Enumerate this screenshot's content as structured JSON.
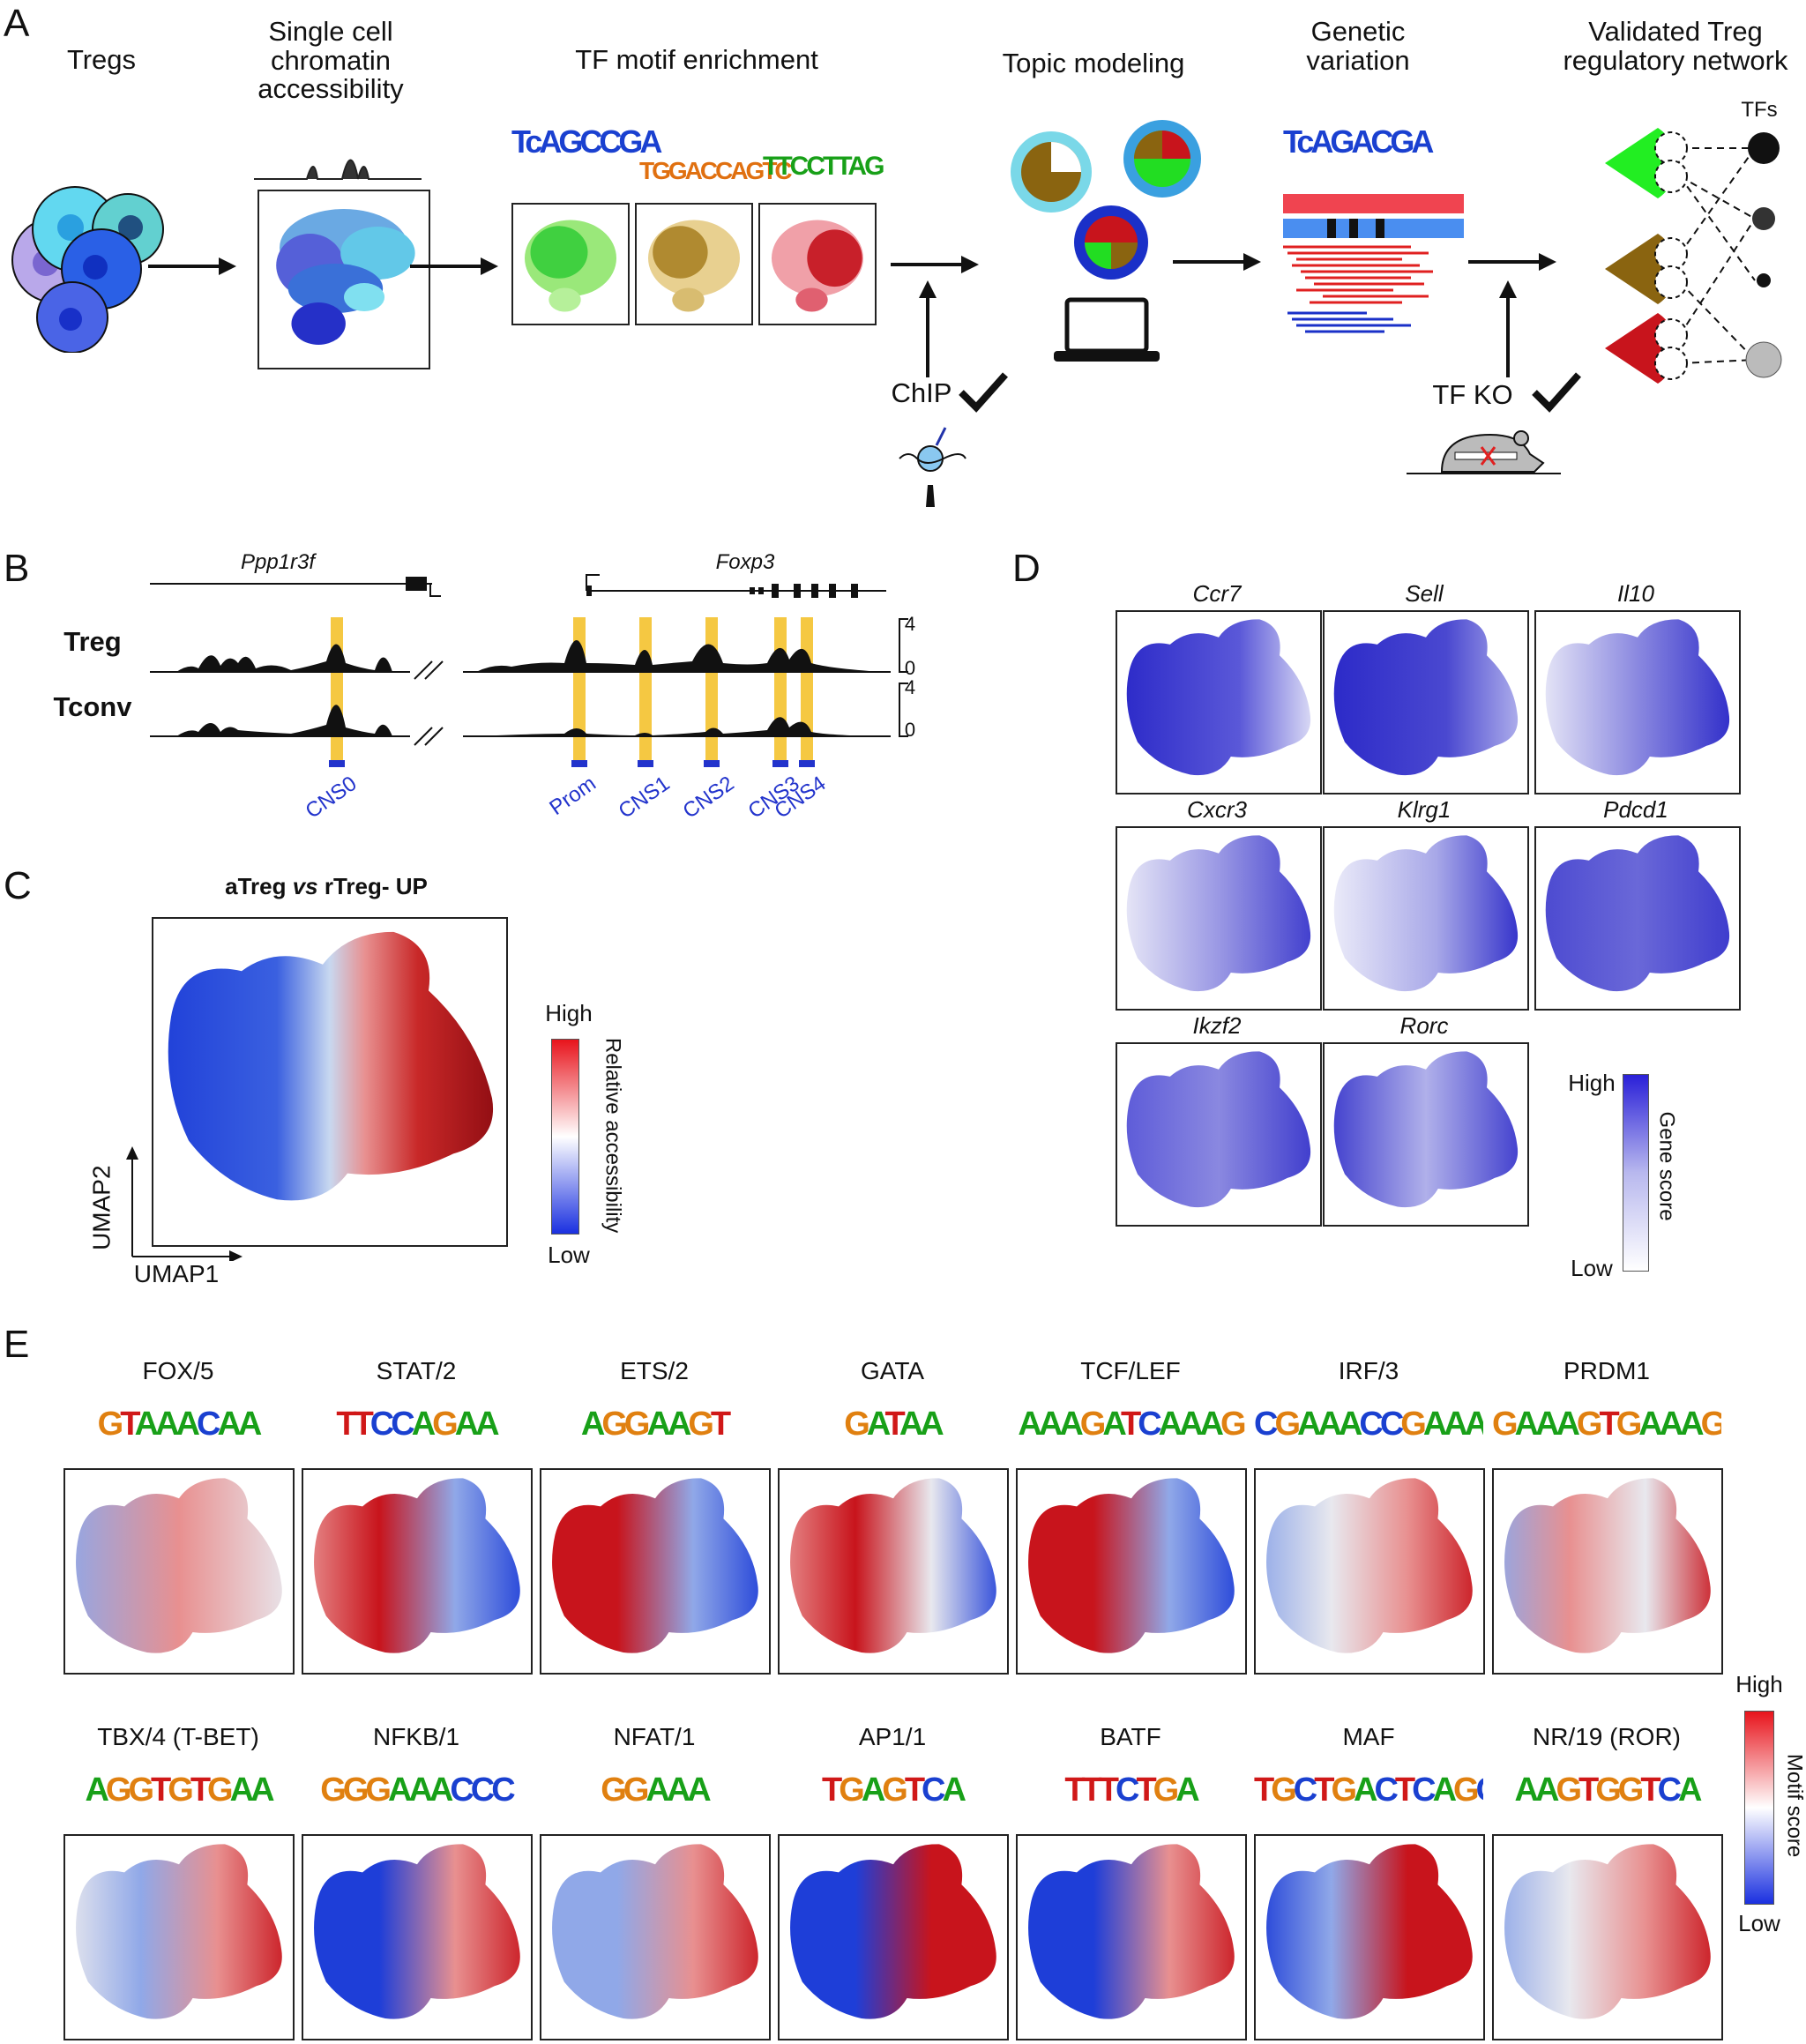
{
  "figure": {
    "panel_letters": {
      "a": "A",
      "b": "B",
      "c": "C",
      "d": "D",
      "e": "E"
    },
    "panel_a": {
      "steps": [
        "Tregs",
        "Single cell\nchromatin\naccessibility",
        "TF motif enrichment",
        "Topic modeling",
        "Genetic\nvariation",
        "Validated Treg\nregulatory network"
      ],
      "chip_label": "ChIP",
      "tfko_label": "TF KO",
      "tfs_label": "TFs",
      "motif_texts": [
        "TcAGCCGA",
        "TGGACCAGTC",
        "TTCCTTAG",
        "TcAGACGA"
      ]
    },
    "panel_b": {
      "genes": [
        "Ppp1r3f",
        "Foxp3"
      ],
      "tracks": [
        "Treg",
        "Tconv"
      ],
      "scale_max": "4",
      "scale_min": "0",
      "regions": [
        "CNS0",
        "Prom",
        "CNS1",
        "CNS2",
        "CNS3",
        "CNS4"
      ]
    },
    "panel_c": {
      "title_pre": "aTreg ",
      "title_vs": "vs",
      "title_post": " rTreg- UP",
      "axis_x": "UMAP1",
      "axis_y": "UMAP2",
      "legend_high": "High",
      "legend_low": "Low",
      "legend_title": "Relative accessibility"
    },
    "panel_d": {
      "genes": [
        "Ccr7",
        "Sell",
        "Il10",
        "Cxcr3",
        "Klrg1",
        "Pdcd1",
        "Ikzf2",
        "Rorc"
      ],
      "legend_high": "High",
      "legend_low": "Low",
      "legend_title": "Gene score"
    },
    "panel_e": {
      "motifs": [
        "FOX/5",
        "STAT/2",
        "ETS/2",
        "GATA",
        "TCF/LEF",
        "IRF/3",
        "PRDM1",
        "TBX/4 (T-BET)",
        "NFKB/1",
        "NFAT/1",
        "AP1/1",
        "BATF",
        "MAF",
        "NR/19 (ROR)"
      ],
      "logos": [
        "GTAAACAA",
        "TTCCAGAA",
        "AGGAAGT",
        "GATAA",
        "AAAGATCAAAG",
        "CGAAACCGAAACT",
        "GAAAGTGAAAGT",
        "AGGTGTGAA",
        "GGGAAACCC",
        "GGAAA",
        "TGAGTCA",
        "TTTCTGA",
        "TGCTGACTCAGCA",
        "AAGTGGTCA"
      ],
      "legend_high": "High",
      "legend_low": "Low",
      "legend_title": "Motif score"
    },
    "colors": {
      "blue": "#2a3fd6",
      "red": "#c8141c",
      "green": "#22dd22",
      "brown": "#8a6410",
      "yellow": "#f5c842"
    }
  }
}
